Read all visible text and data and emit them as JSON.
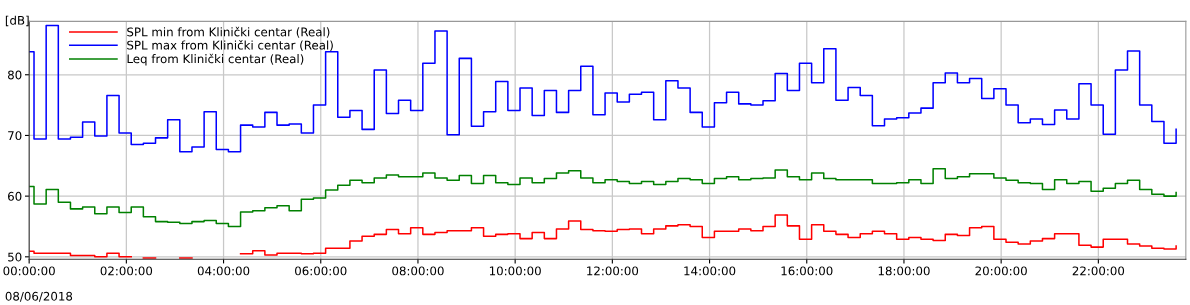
{
  "chart_data": {
    "type": "step",
    "ylabel": "[dB]",
    "annotations": [
      "08/06/2018"
    ],
    "x": [
      0,
      0.1,
      0.35,
      0.6,
      0.85,
      1.1,
      1.35,
      1.6,
      1.85,
      2.1,
      2.35,
      2.6,
      2.85,
      3.1,
      3.35,
      3.6,
      3.85,
      4.1,
      4.35,
      4.6,
      4.85,
      5.1,
      5.35,
      5.6,
      5.85,
      6.1,
      6.35,
      6.6,
      6.85,
      7.1,
      7.35,
      7.6,
      7.85,
      8.1,
      8.35,
      8.6,
      8.85,
      9.1,
      9.35,
      9.6,
      9.85,
      10.1,
      10.35,
      10.6,
      10.85,
      11.1,
      11.35,
      11.6,
      11.85,
      12.1,
      12.35,
      12.6,
      12.85,
      13.1,
      13.35,
      13.6,
      13.85,
      14.1,
      14.35,
      14.6,
      14.85,
      15.1,
      15.35,
      15.6,
      15.85,
      16.1,
      16.35,
      16.6,
      16.85,
      17.1,
      17.35,
      17.6,
      17.85,
      18.1,
      18.35,
      18.6,
      18.85,
      19.1,
      19.35,
      19.6,
      19.85,
      20.1,
      20.35,
      20.6,
      20.85,
      21.1,
      21.35,
      21.6,
      21.85,
      22.1,
      22.35,
      22.6,
      22.85,
      23.1,
      23.35,
      23.6
    ],
    "series": [
      {
        "name": "SPL min from Klinički centar (Real)",
        "color": "#ff0000",
        "values": [
          50.9,
          50.6,
          50.6,
          50.6,
          50.2,
          50.2,
          50.0,
          50.6,
          50.0,
          null,
          49.8,
          null,
          null,
          49.8,
          null,
          null,
          null,
          null,
          50.5,
          51.0,
          50.3,
          50.6,
          50.6,
          50.5,
          50.6,
          51.4,
          51.4,
          52.6,
          53.4,
          53.7,
          54.5,
          53.8,
          54.8,
          53.7,
          54.0,
          54.3,
          54.3,
          54.8,
          53.4,
          53.7,
          53.8,
          53.0,
          54.0,
          53.0,
          54.6,
          55.9,
          54.5,
          54.3,
          54.2,
          54.5,
          54.6,
          53.8,
          54.6,
          55.1,
          55.3,
          55.0,
          53.2,
          54.2,
          54.2,
          54.6,
          54.3,
          55.0,
          56.9,
          55.1,
          52.9,
          55.3,
          54.2,
          53.7,
          53.2,
          53.8,
          54.2,
          53.8,
          52.9,
          53.2,
          52.9,
          52.7,
          53.7,
          53.5,
          54.8,
          55.0,
          52.9,
          52.4,
          52.1,
          52.6,
          53.0,
          53.8,
          53.8,
          51.9,
          51.6,
          52.9,
          52.9,
          52.1,
          51.8,
          51.4,
          51.3,
          51.8
        ]
      },
      {
        "name": "SPL max from Klinički centar (Real)",
        "color": "#0000ff",
        "values": [
          83.8,
          69.4,
          88.1,
          69.4,
          69.7,
          72.2,
          69.9,
          76.6,
          70.4,
          68.5,
          68.7,
          69.6,
          72.6,
          67.3,
          68.1,
          73.9,
          67.7,
          67.3,
          71.7,
          71.4,
          73.8,
          71.7,
          71.9,
          70.4,
          75.0,
          83.8,
          73.0,
          74.1,
          71.0,
          80.8,
          73.6,
          75.8,
          74.1,
          81.9,
          87.2,
          70.1,
          82.7,
          71.5,
          73.9,
          78.9,
          74.1,
          77.8,
          73.3,
          77.4,
          73.8,
          77.4,
          81.4,
          73.4,
          77.0,
          75.5,
          76.8,
          77.1,
          72.6,
          79.0,
          77.8,
          73.8,
          71.4,
          75.4,
          77.1,
          75.2,
          75.0,
          75.7,
          80.2,
          77.4,
          81.9,
          78.7,
          84.3,
          75.8,
          77.9,
          76.6,
          71.6,
          72.7,
          72.9,
          73.7,
          74.5,
          78.7,
          80.3,
          78.7,
          79.4,
          76.1,
          77.7,
          75.0,
          72.1,
          72.7,
          71.8,
          74.2,
          72.7,
          78.5,
          75.0,
          70.2,
          80.8,
          83.9,
          75.0,
          72.3,
          68.7,
          71.0
        ]
      },
      {
        "name": "Leq from Klinički centar (Real)",
        "color": "#008000",
        "values": [
          61.6,
          58.7,
          61.1,
          59.0,
          57.9,
          58.2,
          57.1,
          58.2,
          57.3,
          58.2,
          56.6,
          55.8,
          55.7,
          55.5,
          55.8,
          56.0,
          55.5,
          55.0,
          57.4,
          57.6,
          58.1,
          58.4,
          57.6,
          59.5,
          59.7,
          61.0,
          61.8,
          62.6,
          62.2,
          63.0,
          63.5,
          63.2,
          63.2,
          63.8,
          63.0,
          62.6,
          63.4,
          62.1,
          63.4,
          62.2,
          61.9,
          63.0,
          62.2,
          62.9,
          63.8,
          64.2,
          63.0,
          62.2,
          62.7,
          62.4,
          62.1,
          62.4,
          61.9,
          62.4,
          62.9,
          62.7,
          62.1,
          62.9,
          63.2,
          62.7,
          62.9,
          63.0,
          64.3,
          63.2,
          62.7,
          63.8,
          62.9,
          62.7,
          62.7,
          62.7,
          62.1,
          62.1,
          62.2,
          62.7,
          62.1,
          64.5,
          62.9,
          63.2,
          63.7,
          63.7,
          63.0,
          62.6,
          62.2,
          62.1,
          61.1,
          62.7,
          62.1,
          62.4,
          60.8,
          61.3,
          62.1,
          62.6,
          61.1,
          60.3,
          60.0,
          60.6
        ]
      }
    ],
    "xlim": [
      0,
      23.8
    ],
    "xticks": [
      {
        "value": 0,
        "label": "00:00:00"
      },
      {
        "value": 2,
        "label": "02:00:00"
      },
      {
        "value": 4,
        "label": "04:00:00"
      },
      {
        "value": 6,
        "label": "06:00:00"
      },
      {
        "value": 8,
        "label": "08:00:00"
      },
      {
        "value": 10,
        "label": "10:00:00"
      },
      {
        "value": 12,
        "label": "12:00:00"
      },
      {
        "value": 14,
        "label": "14:00:00"
      },
      {
        "value": 16,
        "label": "16:00:00"
      },
      {
        "value": 18,
        "label": "18:00:00"
      },
      {
        "value": 20,
        "label": "20:00:00"
      },
      {
        "value": 22,
        "label": "22:00:00"
      }
    ],
    "ylim": [
      49.6,
      88.8
    ],
    "yticks": [
      50,
      60,
      70,
      80
    ],
    "grid": true,
    "legend": "top left"
  }
}
